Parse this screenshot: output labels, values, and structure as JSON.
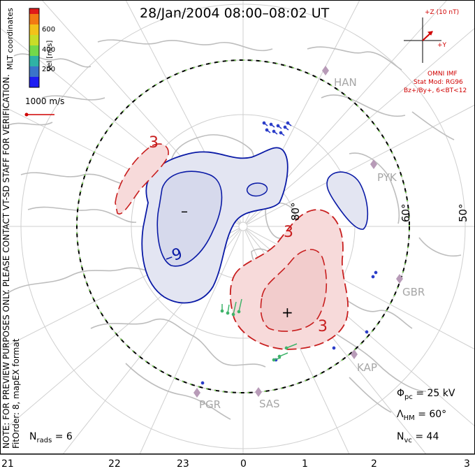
{
  "title": "28/Jan/2004 08:00–08:02 UT",
  "coordinates_label": "MLT coordinates",
  "colorbar": {
    "label": "Vel [m/s]",
    "ticks": [
      "600",
      "400",
      "200"
    ],
    "colors": [
      "#1d1df2",
      "#3a74c9",
      "#2fb2a5",
      "#73d94a",
      "#c8dd28",
      "#f2c21a",
      "#f27a14",
      "#e01a1a"
    ]
  },
  "reference_vector": {
    "label": "1000 m/s",
    "color": "#d00000"
  },
  "imf": {
    "plus_z": "+Z (10 nT)",
    "plus_y": "+Y",
    "model_title": "OMNI IMF",
    "model_line": "Stat Mod: RG96",
    "model_params": "Bz+/By+, 6<BT<12",
    "color": "#d00000"
  },
  "radars": [
    "HAN",
    "PYK",
    "GBR",
    "KAP",
    "SAS",
    "PGR"
  ],
  "latitude_labels": [
    "80°",
    "60°",
    "50°"
  ],
  "contours": {
    "negative_labels": [
      "–",
      "–9"
    ],
    "positive_labels": [
      "3",
      "3",
      "3",
      "+"
    ],
    "negative_color": "#0a1aa6",
    "positive_color": "#c81e1e",
    "negative_fill": "#e3e5f2",
    "positive_fill": "#f7dada"
  },
  "stats": {
    "phi_pc": {
      "symbol": "Φ",
      "sub": "pc",
      "value": "= 25 kV"
    },
    "lambda_hm": {
      "symbol": "Λ",
      "sub": "HM",
      "value": "= 60°"
    },
    "n_vc": {
      "symbol": "N",
      "sub": "vc",
      "value": "= 44"
    },
    "n_rads": {
      "symbol": "N",
      "sub": "rads",
      "value": "= 6"
    }
  },
  "note_lines": [
    "NOTE: FOR PREVIEW PURPOSES ONLY. PLEASE CONTACT VT-SD STAFF FOR VERIFICATION.",
    "FitOrder: 8, mapEX format"
  ],
  "hour_labels": [
    "21",
    "22",
    "23",
    "0",
    "1",
    "2",
    "3"
  ]
}
